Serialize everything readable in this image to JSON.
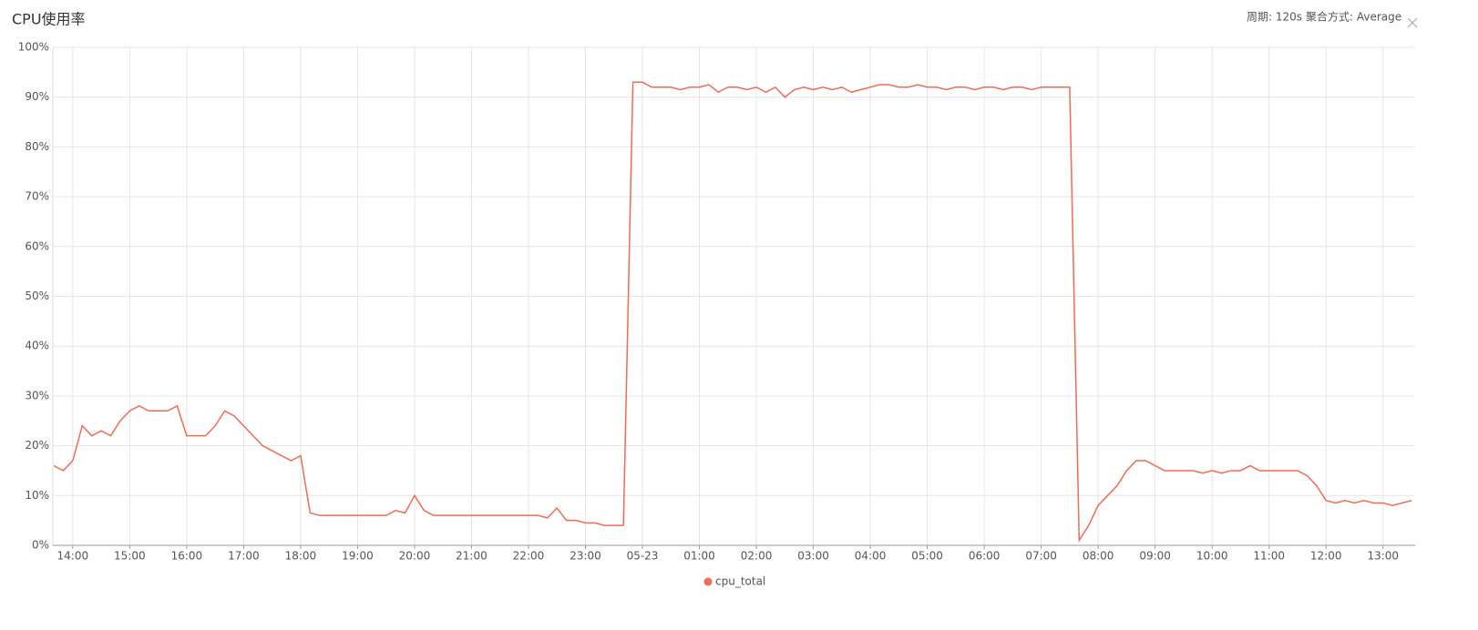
{
  "chart_data": {
    "type": "line",
    "title": "CPU使用率",
    "controls": [
      "周期: 120s",
      "聚合方式: Average"
    ],
    "categories": [
      null,
      null,
      "14:00",
      null,
      null,
      null,
      null,
      null,
      "15:00",
      null,
      null,
      null,
      null,
      null,
      "16:00",
      null,
      null,
      null,
      null,
      null,
      "17:00",
      null,
      null,
      null,
      null,
      null,
      "18:00",
      null,
      null,
      null,
      null,
      null,
      "19:00",
      null,
      null,
      null,
      null,
      null,
      "20:00",
      null,
      null,
      null,
      null,
      null,
      "21:00",
      null,
      null,
      null,
      null,
      null,
      "22:00",
      null,
      null,
      null,
      null,
      null,
      "23:00",
      null,
      null,
      null,
      null,
      null,
      "05-23",
      null,
      null,
      null,
      null,
      null,
      "01:00",
      null,
      null,
      null,
      null,
      null,
      "02:00",
      null,
      null,
      null,
      null,
      null,
      "03:00",
      null,
      null,
      null,
      null,
      null,
      "04:00",
      null,
      null,
      null,
      null,
      null,
      "05:00",
      null,
      null,
      null,
      null,
      null,
      "06:00",
      null,
      null,
      null,
      null,
      null,
      "07:00",
      null,
      null,
      null,
      null,
      null,
      "08:00",
      null,
      null,
      null,
      null,
      null,
      "09:00",
      null,
      null,
      null,
      null,
      null,
      "10:00",
      null,
      null,
      null,
      null,
      null,
      "11:00",
      null,
      null,
      null,
      null,
      null,
      "12:00",
      null,
      null,
      null,
      null,
      null,
      "13:00",
      null,
      null,
      null
    ],
    "series": [
      {
        "name": "cpu_total",
        "color": "#f26b55",
        "values": [
          16,
          15,
          17,
          24,
          22,
          23,
          22,
          25,
          27,
          28,
          27,
          27,
          27,
          28,
          22,
          22,
          22,
          24,
          27,
          26,
          24,
          22,
          20,
          19,
          18,
          17,
          18,
          6.5,
          6,
          6,
          6,
          6,
          6,
          6,
          6,
          6,
          7,
          6.5,
          10,
          7,
          6,
          6,
          6,
          6,
          6,
          6,
          6,
          6,
          6,
          6,
          6,
          6,
          5.5,
          7.5,
          5,
          5,
          4.5,
          4.5,
          4,
          4,
          4,
          93,
          93,
          92,
          92,
          92,
          91.5,
          92,
          92,
          92.5,
          91,
          92,
          92,
          91.5,
          92,
          91,
          92,
          90,
          91.5,
          92,
          91.5,
          92,
          91.5,
          92,
          91,
          91.5,
          92,
          92.5,
          92.5,
          92,
          92,
          92.5,
          92,
          92,
          91.5,
          92,
          92,
          91.5,
          92,
          92,
          91.5,
          92,
          92,
          91.5,
          92,
          92,
          92,
          92,
          1,
          4,
          8,
          10,
          12,
          15,
          17,
          17,
          16,
          15,
          15,
          15,
          15,
          14.5,
          15,
          14.5,
          15,
          15,
          16,
          15,
          15,
          15,
          15,
          15,
          14,
          12,
          9,
          8.5,
          9,
          8.5,
          9,
          8.5,
          8.5,
          8,
          8.5,
          9
        ]
      }
    ],
    "ylim": [
      0,
      100
    ],
    "yticks": [
      {
        "value": 0,
        "label": "0%"
      },
      {
        "value": 10,
        "label": "10%"
      },
      {
        "value": 20,
        "label": "20%"
      },
      {
        "value": 30,
        "label": "30%"
      },
      {
        "value": 40,
        "label": "40%"
      },
      {
        "value": 50,
        "label": "50%"
      },
      {
        "value": 60,
        "label": "60%"
      },
      {
        "value": 70,
        "label": "70%"
      },
      {
        "value": 80,
        "label": "80%"
      },
      {
        "value": 90,
        "label": "90%"
      },
      {
        "value": 100,
        "label": "100%"
      }
    ],
    "grid": true,
    "legend": "bottom"
  }
}
